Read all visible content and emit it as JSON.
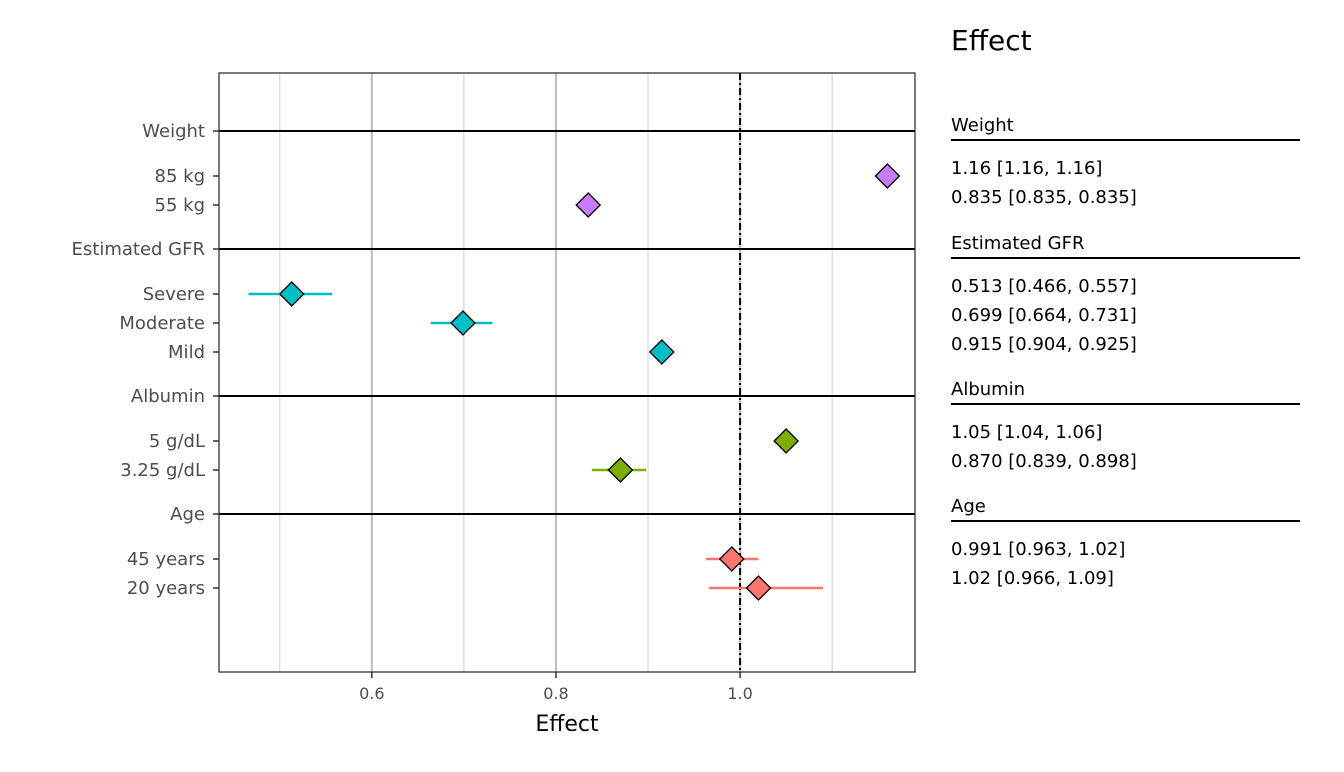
{
  "chart_data": {
    "type": "forest",
    "xlabel": "Effect",
    "xlim": [
      0.434,
      1.19
    ],
    "xticks": [
      0.6,
      0.8,
      1.0
    ],
    "xtick_labels": [
      "0.6",
      "0.8",
      "1.0"
    ],
    "minor_gridlines": [
      0.5,
      0.7,
      0.9,
      1.1
    ],
    "reference_line": 1.0,
    "grid": true,
    "table_title": "Effect",
    "groups": [
      {
        "name": "Weight",
        "color": "#C77CFF",
        "rows": [
          {
            "label": "85 kg",
            "value": 1.16,
            "lower": 1.16,
            "upper": 1.16,
            "text": "1.16 [1.16, 1.16]"
          },
          {
            "label": "55 kg",
            "value": 0.835,
            "lower": 0.835,
            "upper": 0.835,
            "text": "0.835 [0.835, 0.835]"
          }
        ]
      },
      {
        "name": "Estimated GFR",
        "color": "#00BFC4",
        "rows": [
          {
            "label": "Severe",
            "value": 0.513,
            "lower": 0.466,
            "upper": 0.557,
            "text": "0.513 [0.466, 0.557]"
          },
          {
            "label": "Moderate",
            "value": 0.699,
            "lower": 0.664,
            "upper": 0.731,
            "text": "0.699 [0.664, 0.731]"
          },
          {
            "label": "Mild",
            "value": 0.915,
            "lower": 0.904,
            "upper": 0.925,
            "text": "0.915 [0.904, 0.925]"
          }
        ]
      },
      {
        "name": "Albumin",
        "color": "#7CAE00",
        "rows": [
          {
            "label": "5 g/dL",
            "value": 1.05,
            "lower": 1.04,
            "upper": 1.06,
            "text": "1.05 [1.04, 1.06]"
          },
          {
            "label": "3.25 g/dL",
            "value": 0.87,
            "lower": 0.839,
            "upper": 0.898,
            "text": "0.870 [0.839, 0.898]"
          }
        ]
      },
      {
        "name": "Age",
        "color": "#F8766D",
        "rows": [
          {
            "label": "45 years",
            "value": 0.991,
            "lower": 0.963,
            "upper": 1.02,
            "text": "0.991 [0.963, 1.02]"
          },
          {
            "label": "20 years",
            "value": 1.02,
            "lower": 0.966,
            "upper": 1.09,
            "text": "1.02 [0.966, 1.09]"
          }
        ]
      }
    ]
  }
}
